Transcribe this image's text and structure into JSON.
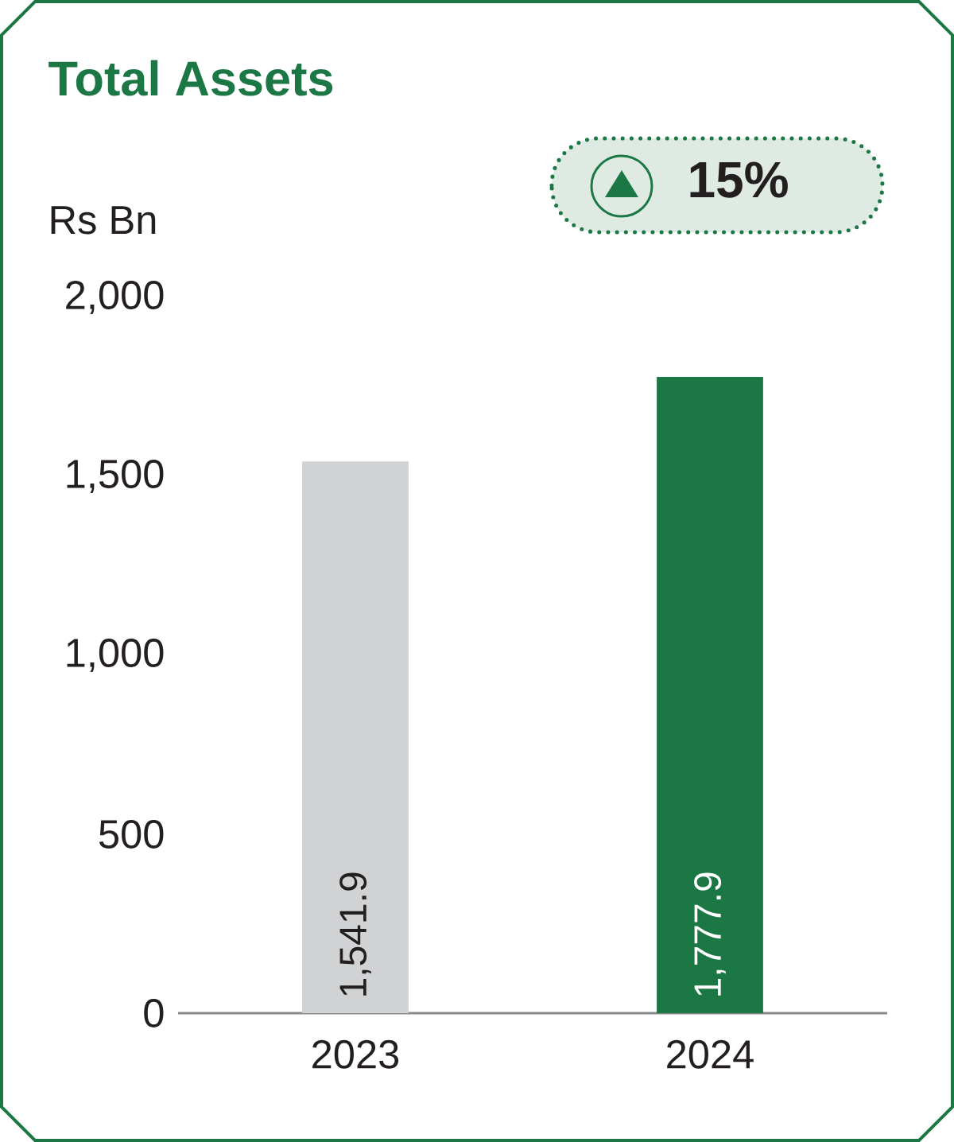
{
  "chart_data": {
    "type": "bar",
    "title": "Total Assets",
    "ylabel": "Rs Bn",
    "categories": [
      "2023",
      "2024"
    ],
    "values": [
      1541.9,
      1777.9
    ],
    "colors": [
      "#d1d2d4",
      "#1b7845"
    ],
    "value_labels": [
      "1,541.9",
      "1,777.9"
    ],
    "ylim": [
      0,
      2000
    ],
    "yticks": [
      0,
      500,
      {
        "value": 1000,
        "label": "1,000"
      },
      {
        "value": 1500,
        "label": "1,500"
      },
      {
        "value": 2000,
        "label": "2,000"
      }
    ],
    "annotations": [
      "15%"
    ]
  }
}
